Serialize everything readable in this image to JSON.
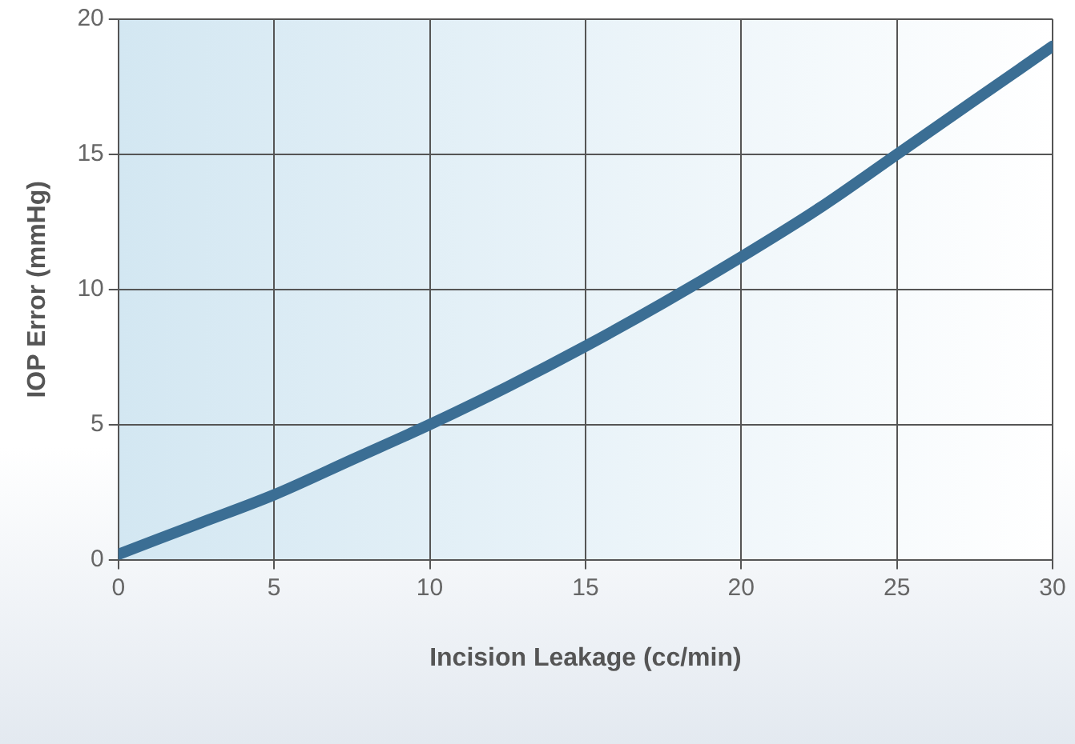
{
  "chart_data": {
    "type": "line",
    "xlabel": "Incision Leakage (cc/min)",
    "ylabel": "IOP Error (mmHg)",
    "x": [
      0,
      2.5,
      5,
      7.5,
      10,
      12.5,
      15,
      17.5,
      20,
      22.5,
      25,
      27.5,
      30
    ],
    "series": [
      {
        "color": "#3b6e94",
        "values": [
          0.2,
          1.3,
          2.4,
          3.7,
          5,
          6.4,
          7.9,
          9.5,
          11.2,
          13,
          15,
          17,
          19
        ]
      }
    ],
    "xlim": [
      0,
      30
    ],
    "xticks": [
      0,
      5,
      10,
      15,
      20,
      25,
      30
    ],
    "ylim": [
      0,
      20
    ],
    "yticks": [
      0,
      5,
      10,
      15,
      20
    ],
    "grid": true,
    "legend": false,
    "marker": "none",
    "line_style": "solid"
  }
}
